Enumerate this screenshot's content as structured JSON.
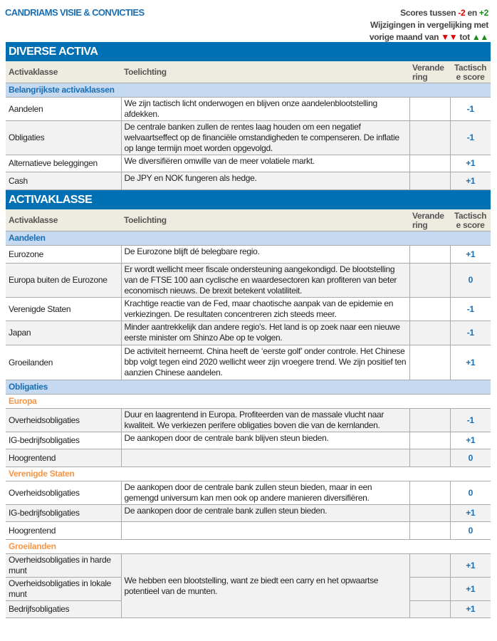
{
  "title": "CANDRIAMS VISIE & CONVICTIES",
  "legend": {
    "line1_a": "Scores tussen ",
    "neg": "-2",
    "line1_b": " en ",
    "pos": "+2",
    "line2": "Wijzigingen  in vergelijking met",
    "line3_a": "vorige maand van ",
    "down": "▼▼",
    "line3_b": " tot ",
    "up": "▲▲",
    "colors": {
      "red": "#e00000",
      "green": "#1a8a1a"
    }
  },
  "columns": [
    "Activaklasse",
    "Toelichting",
    "Verande ring",
    "Tactisch e score"
  ],
  "sections": [
    {
      "title": "DIVERSE ACTIVA",
      "rows": [
        {
          "type": "sub",
          "label": "Belangrijkste activaklassen"
        },
        {
          "label": "Aandelen",
          "text": "We zijn tactisch licht onderwogen en blijven onze aandelenblootstelling afdekken.",
          "change": "",
          "score": "-1"
        },
        {
          "label": "Obligaties",
          "text": "De centrale banken zullen de rentes laag houden om een negatief welvaartseffect op de financiële omstandigheden te compenseren. De inflatie op lange termijn moet worden opgevolgd.",
          "change": "",
          "score": "-1"
        },
        {
          "label": "Alternatieve beleggingen",
          "text": "We diversifiëren omwille van de meer volatiele markt.",
          "change": "",
          "score": "+1"
        },
        {
          "label": "Cash",
          "text": "De JPY en NOK fungeren als hedge.",
          "change": "",
          "score": "+1"
        }
      ]
    },
    {
      "title": "ACTIVAKLASSE",
      "rows": [
        {
          "type": "sub",
          "label": "Aandelen"
        },
        {
          "label": "Eurozone",
          "text": "De Eurozone blijft dé belegbare regio.",
          "change": "",
          "score": "+1"
        },
        {
          "label": "Europa buiten de Eurozone",
          "text": "Er wordt wellicht meer fiscale ondersteuning aangekondigd. De blootstelling van de FTSE 100 aan cyclische en waardesectoren kan profiteren van beter economisch nieuws. De brexit betekent volatiliteit.",
          "change": "",
          "score": "0"
        },
        {
          "label": "Verenigde Staten",
          "text": "Krachtige reactie van de Fed, maar chaotische aanpak van de epidemie en verkiezingen. De resultaten concentreren zich steeds meer.",
          "change": "",
          "score": "-1"
        },
        {
          "label": "Japan",
          "text": "Minder aantrekkelijk dan andere regio's. Het land is op zoek naar een nieuwe eerste minister om Shinzo Abe op te volgen.",
          "change": "",
          "score": "-1"
        },
        {
          "label": "Groeilanden",
          "text": "De activiteit herneemt. China heeft de ‘eerste golf’ onder controle. Het Chinese bbp volgt tegen eind 2020 wellicht weer zijn vroegere trend. We zijn positief ten aanzien Chinese aandelen.",
          "change": "",
          "score": "+1"
        },
        {
          "type": "sub",
          "label": "Obligaties"
        },
        {
          "type": "grp",
          "label": "Europa"
        },
        {
          "label": "Overheidsobligaties",
          "text": "Duur en laagrentend in Europa. Profiteerden van de massale vlucht naar kwaliteit. We  verkiezen perifere obligaties boven die van de kernlanden.",
          "change": "",
          "score": "-1"
        },
        {
          "label": "IG-bedrijfsobligaties",
          "text": "De aankopen door de centrale bank blijven steun bieden.",
          "change": "",
          "score": "+1"
        },
        {
          "label": "Hoogrentend",
          "text": "",
          "change": "",
          "score": "0"
        },
        {
          "type": "grp",
          "label": "Verenigde Staten"
        },
        {
          "label": "Overheidsobligaties",
          "text": "De aankopen door de centrale bank zullen steun bieden, maar in een gemengd universum kan men ook op andere manieren diversifiëren.",
          "change": "",
          "score": "0"
        },
        {
          "label": "IG-bedrijfsobligaties",
          "text": "De aankopen door de centrale bank zullen steun bieden.",
          "change": "",
          "score": "+1"
        },
        {
          "label": "Hoogrentend",
          "text": "",
          "change": "",
          "score": "0"
        },
        {
          "type": "grp",
          "label": "Groeilanden"
        },
        {
          "label": "Overheidsobligaties in harde munt",
          "text": "We hebben een blootstelling, want ze biedt een carry en het opwaartse potentieel van de munten.",
          "span": 3,
          "change": "",
          "score": "+1"
        },
        {
          "label": "Overheidsobligaties in lokale munt",
          "change": "",
          "score": "+1"
        },
        {
          "label": "Bedrijfsobligaties",
          "change": "",
          "score": "+1"
        }
      ]
    }
  ]
}
